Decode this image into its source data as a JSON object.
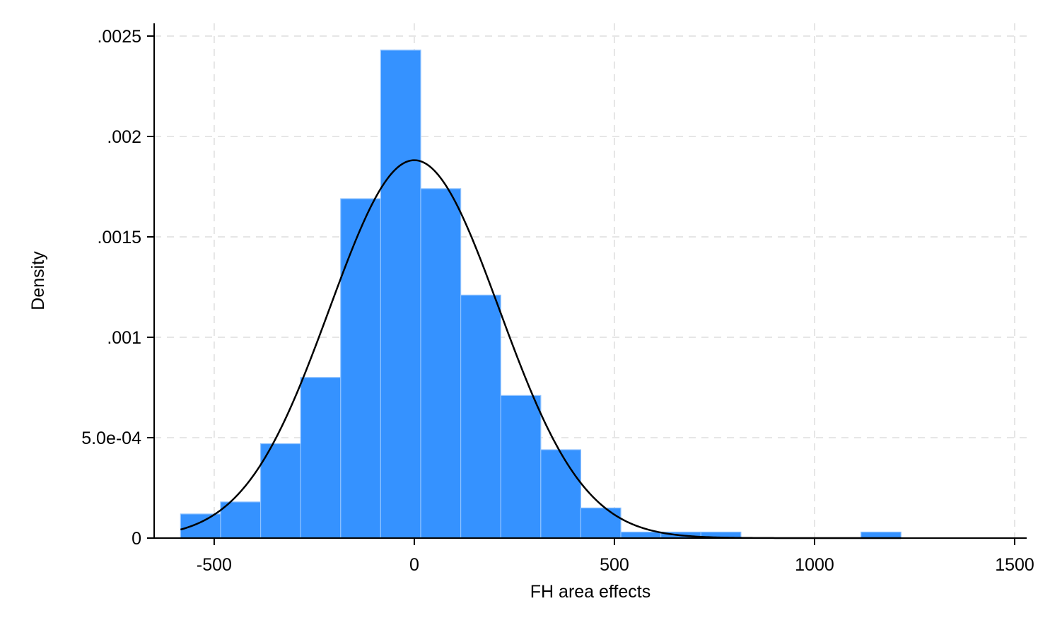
{
  "chart_data": {
    "type": "bar",
    "subtype": "histogram",
    "title": "",
    "xlabel": "FH area effects",
    "ylabel": "Density",
    "xlim": [
      -650,
      1530
    ],
    "ylim": [
      0,
      0.0025
    ],
    "x_ticks": [
      -500,
      0,
      500,
      1000,
      1500
    ],
    "x_tick_labels": [
      "-500",
      "0",
      "500",
      "1000",
      "1500"
    ],
    "y_ticks": [
      0,
      0.0005,
      0.001,
      0.0015,
      0.002,
      0.0025
    ],
    "y_tick_labels": [
      "0",
      "5.0e-04",
      ".001",
      ".0015",
      ".002",
      ".0025"
    ],
    "grid": "major, dashed",
    "legend": "none",
    "bin_width": 100,
    "bins": [
      {
        "x0": -584,
        "x1": -484,
        "density": 0.00012
      },
      {
        "x0": -484,
        "x1": -384,
        "density": 0.00018
      },
      {
        "x0": -384,
        "x1": -284,
        "density": 0.00047
      },
      {
        "x0": -284,
        "x1": -184,
        "density": 0.0008
      },
      {
        "x0": -184,
        "x1": -84,
        "density": 0.00169
      },
      {
        "x0": -84,
        "x1": 16,
        "density": 0.00243
      },
      {
        "x0": 16,
        "x1": 116,
        "density": 0.00174
      },
      {
        "x0": 116,
        "x1": 216,
        "density": 0.00121
      },
      {
        "x0": 216,
        "x1": 316,
        "density": 0.00071
      },
      {
        "x0": 316,
        "x1": 416,
        "density": 0.00044
      },
      {
        "x0": 416,
        "x1": 516,
        "density": 0.00015
      },
      {
        "x0": 516,
        "x1": 616,
        "density": 3e-05
      },
      {
        "x0": 616,
        "x1": 716,
        "density": 3e-05
      },
      {
        "x0": 716,
        "x1": 816,
        "density": 3e-05
      },
      {
        "x0": 816,
        "x1": 916,
        "density": 0
      },
      {
        "x0": 916,
        "x1": 1016,
        "density": 0
      },
      {
        "x0": 1016,
        "x1": 1116,
        "density": 0
      },
      {
        "x0": 1116,
        "x1": 1216,
        "density": 3e-05
      }
    ],
    "normal_curve": {
      "mean": 0,
      "sd": 212,
      "x_range": [
        -584,
        1216
      ]
    },
    "colors": {
      "bar_fill": "#3592ff",
      "bar_edge": "#8ec2ff",
      "curve": "#000000",
      "grid": "#e6e6e6",
      "axis": "#000000"
    }
  }
}
